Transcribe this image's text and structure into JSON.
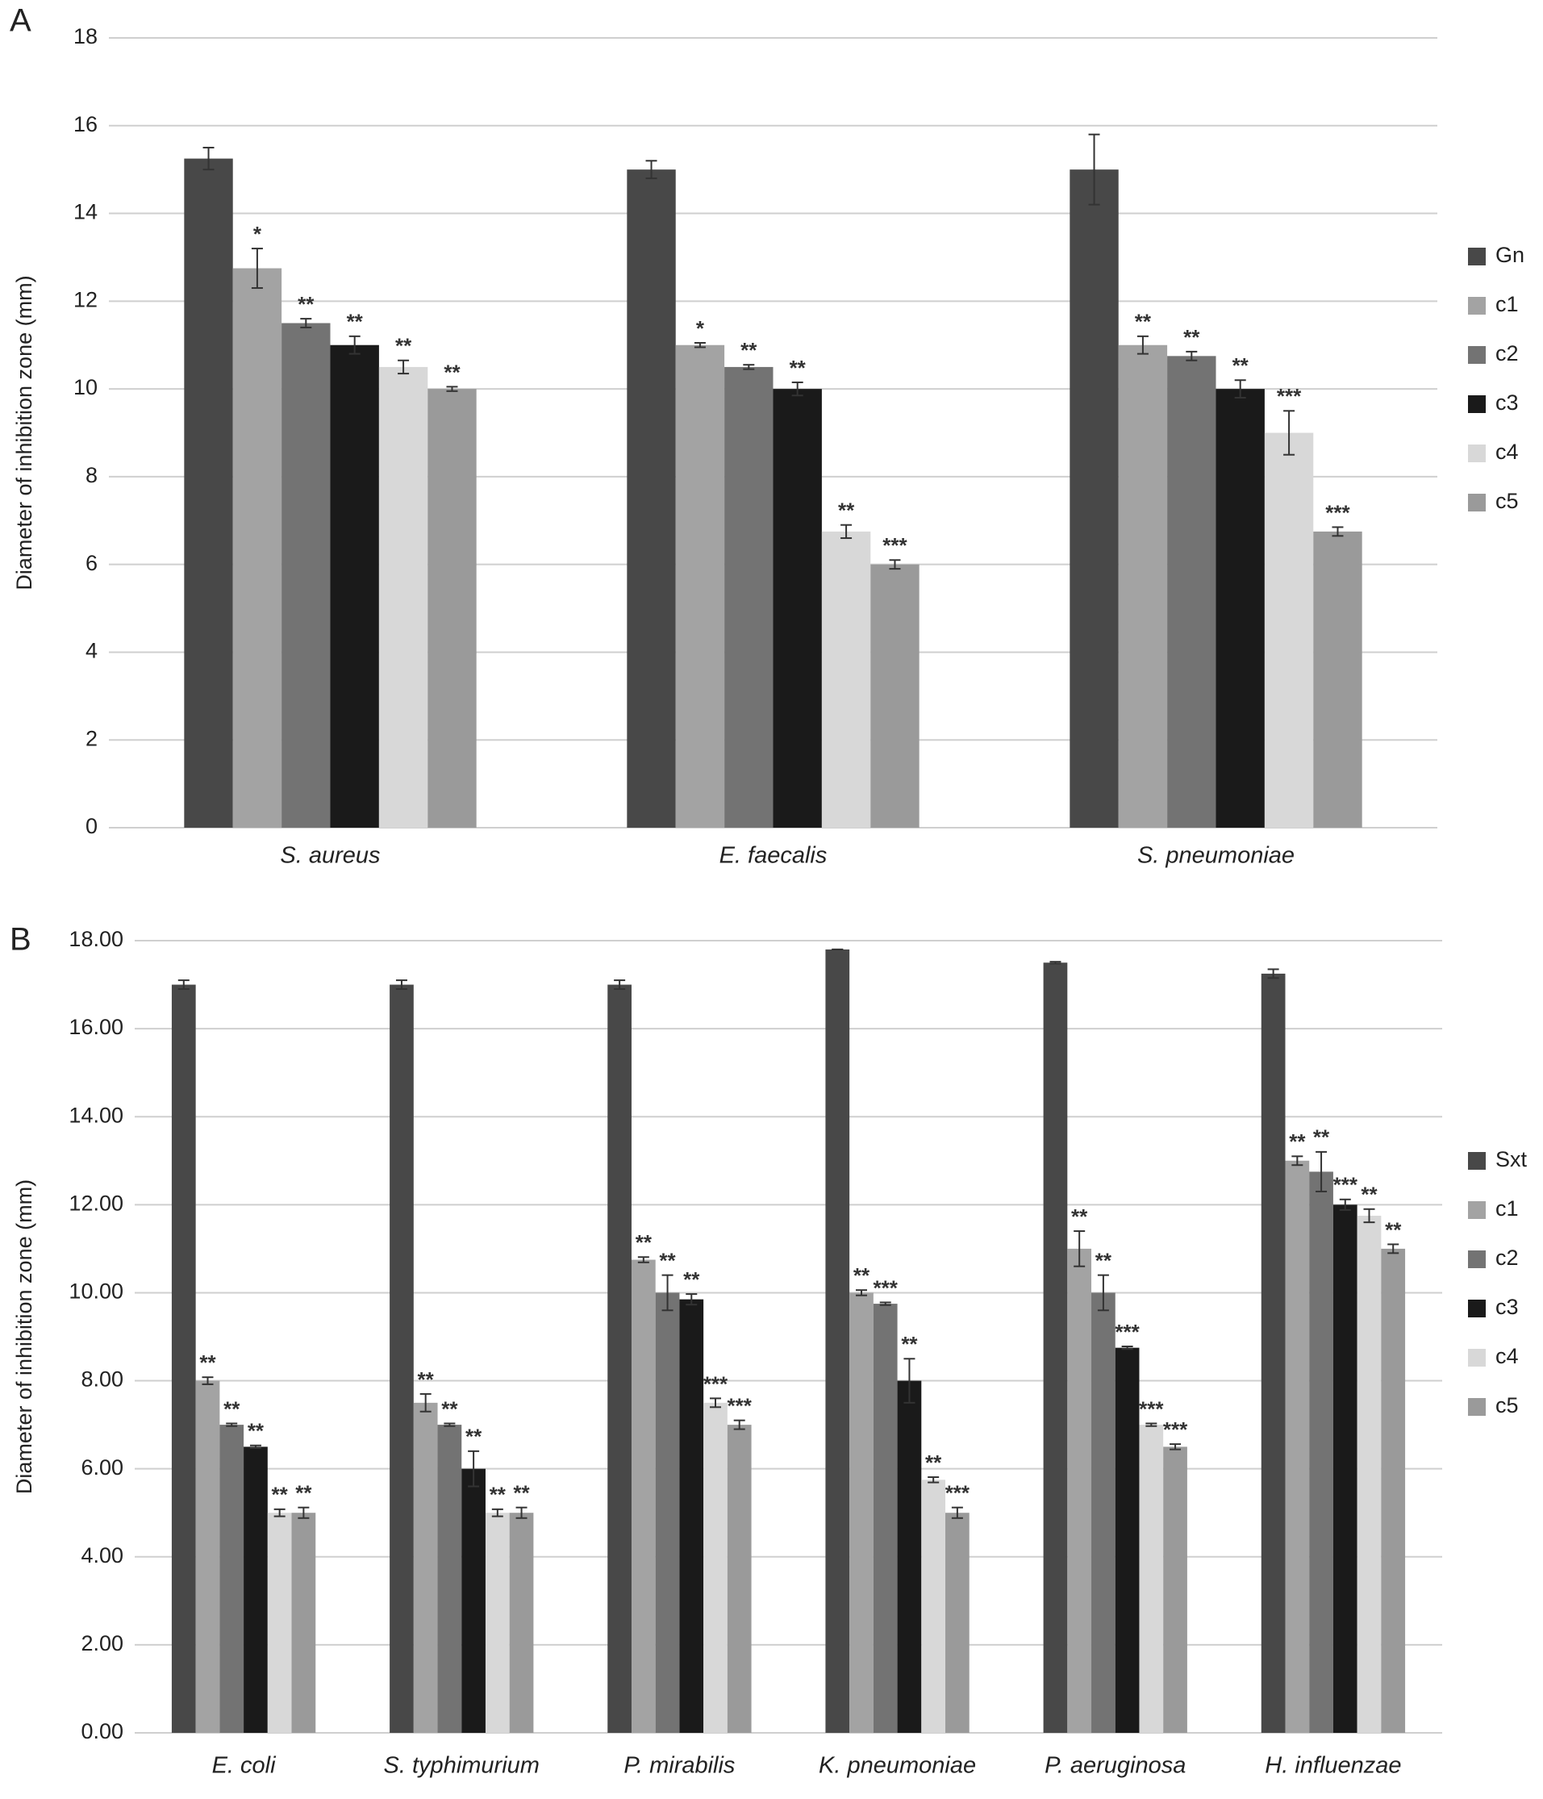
{
  "chart_data": [
    {
      "type": "bar",
      "label": "A",
      "y_label": "Diameter of inhibition zone (mm)",
      "categories": [
        "S. aureus",
        "E. faecalis",
        "S. pneumoniae"
      ],
      "ylim": [
        0,
        18
      ],
      "yticks": [
        0,
        2,
        4,
        6,
        8,
        10,
        12,
        14,
        16,
        18
      ],
      "grid": true,
      "series": [
        {
          "name": "Gn",
          "color": "#484848",
          "values": [
            15.25,
            15.0,
            15.0
          ],
          "errors": [
            0.25,
            0.2,
            0.8
          ],
          "annotations": [
            null,
            null,
            null
          ]
        },
        {
          "name": "c1",
          "color": "#a3a3a3",
          "values": [
            12.75,
            11.0,
            11.0
          ],
          "errors": [
            0.45,
            0.05,
            0.2
          ],
          "annotations": [
            "*",
            "*",
            "**"
          ]
        },
        {
          "name": "c2",
          "color": "#737373",
          "values": [
            11.5,
            10.5,
            10.75
          ],
          "errors": [
            0.1,
            0.05,
            0.1
          ],
          "annotations": [
            "**",
            "**",
            "**"
          ]
        },
        {
          "name": "c3",
          "color": "#1a1a1a",
          "values": [
            11.0,
            10.0,
            10.0
          ],
          "errors": [
            0.2,
            0.15,
            0.2
          ],
          "annotations": [
            "**",
            "**",
            "**"
          ]
        },
        {
          "name": "c4",
          "color": "#d8d8d8",
          "values": [
            10.5,
            6.75,
            9.0
          ],
          "errors": [
            0.15,
            0.15,
            0.5
          ],
          "annotations": [
            "**",
            "**",
            "***"
          ]
        },
        {
          "name": "c5",
          "color": "#9a9a9a",
          "values": [
            10.0,
            6.0,
            6.75
          ],
          "errors": [
            0.05,
            0.1,
            0.1
          ],
          "annotations": [
            "**",
            "***",
            "***"
          ]
        }
      ]
    },
    {
      "type": "bar",
      "label": "B",
      "y_label": "Diameter of inhibition zone (mm)",
      "categories": [
        "E. coli",
        "S. typhimurium",
        "P. mirabilis",
        "K. pneumoniae",
        "P. aeruginosa",
        "H. influenzae"
      ],
      "ylim": [
        0,
        18
      ],
      "yticks": [
        {
          "value": 0,
          "label": "0.00"
        },
        {
          "value": 2,
          "label": "2.00"
        },
        {
          "value": 4,
          "label": "4.00"
        },
        {
          "value": 6,
          "label": "6.00"
        },
        {
          "value": 8,
          "label": "8.00"
        },
        {
          "value": 10,
          "label": "10.00"
        },
        {
          "value": 12,
          "label": "12.00"
        },
        {
          "value": 14,
          "label": "14.00"
        },
        {
          "value": 16,
          "label": "16.00"
        },
        {
          "value": 18,
          "label": "18.00"
        }
      ],
      "grid": true,
      "series": [
        {
          "name": "Sxt",
          "color": "#484848",
          "values": [
            17.0,
            17.0,
            17.0,
            17.8,
            17.5,
            17.25
          ],
          "errors": [
            0.1,
            0.1,
            0.1,
            0,
            0.02,
            0.1
          ],
          "annotations": [
            null,
            null,
            null,
            null,
            null,
            null
          ]
        },
        {
          "name": "c1",
          "color": "#a3a3a3",
          "values": [
            8.0,
            7.5,
            10.75,
            10.0,
            11.0,
            13.0
          ],
          "errors": [
            0.08,
            0.2,
            0.06,
            0.06,
            0.4,
            0.1
          ],
          "annotations": [
            "**",
            "**",
            "**",
            "**",
            "**",
            "**"
          ]
        },
        {
          "name": "c2",
          "color": "#737373",
          "values": [
            7.0,
            7.0,
            10.0,
            9.75,
            10.0,
            12.75
          ],
          "errors": [
            0.03,
            0.03,
            0.4,
            0.03,
            0.4,
            0.45
          ],
          "annotations": [
            "**",
            "**",
            "**",
            "***",
            "**",
            "**"
          ]
        },
        {
          "name": "c3",
          "color": "#1a1a1a",
          "values": [
            6.5,
            6.0,
            9.85,
            8.0,
            8.75,
            12.0
          ],
          "errors": [
            0.03,
            0.4,
            0.12,
            0.5,
            0.03,
            0.12
          ],
          "annotations": [
            "**",
            "**",
            "**",
            "**",
            "***",
            "***"
          ]
        },
        {
          "name": "c4",
          "color": "#d8d8d8",
          "values": [
            5.0,
            5.0,
            7.5,
            5.75,
            7.0,
            11.75
          ],
          "errors": [
            0.08,
            0.08,
            0.1,
            0.06,
            0.03,
            0.15
          ],
          "annotations": [
            "**",
            "**",
            "***",
            "**",
            "***",
            "**"
          ]
        },
        {
          "name": "c5",
          "color": "#9a9a9a",
          "values": [
            5.0,
            5.0,
            7.0,
            5.0,
            6.5,
            11.0
          ],
          "errors": [
            0.12,
            0.12,
            0.1,
            0.12,
            0.06,
            0.1
          ],
          "annotations": [
            "**",
            "**",
            "***",
            "***",
            "***",
            "**"
          ]
        }
      ]
    }
  ]
}
